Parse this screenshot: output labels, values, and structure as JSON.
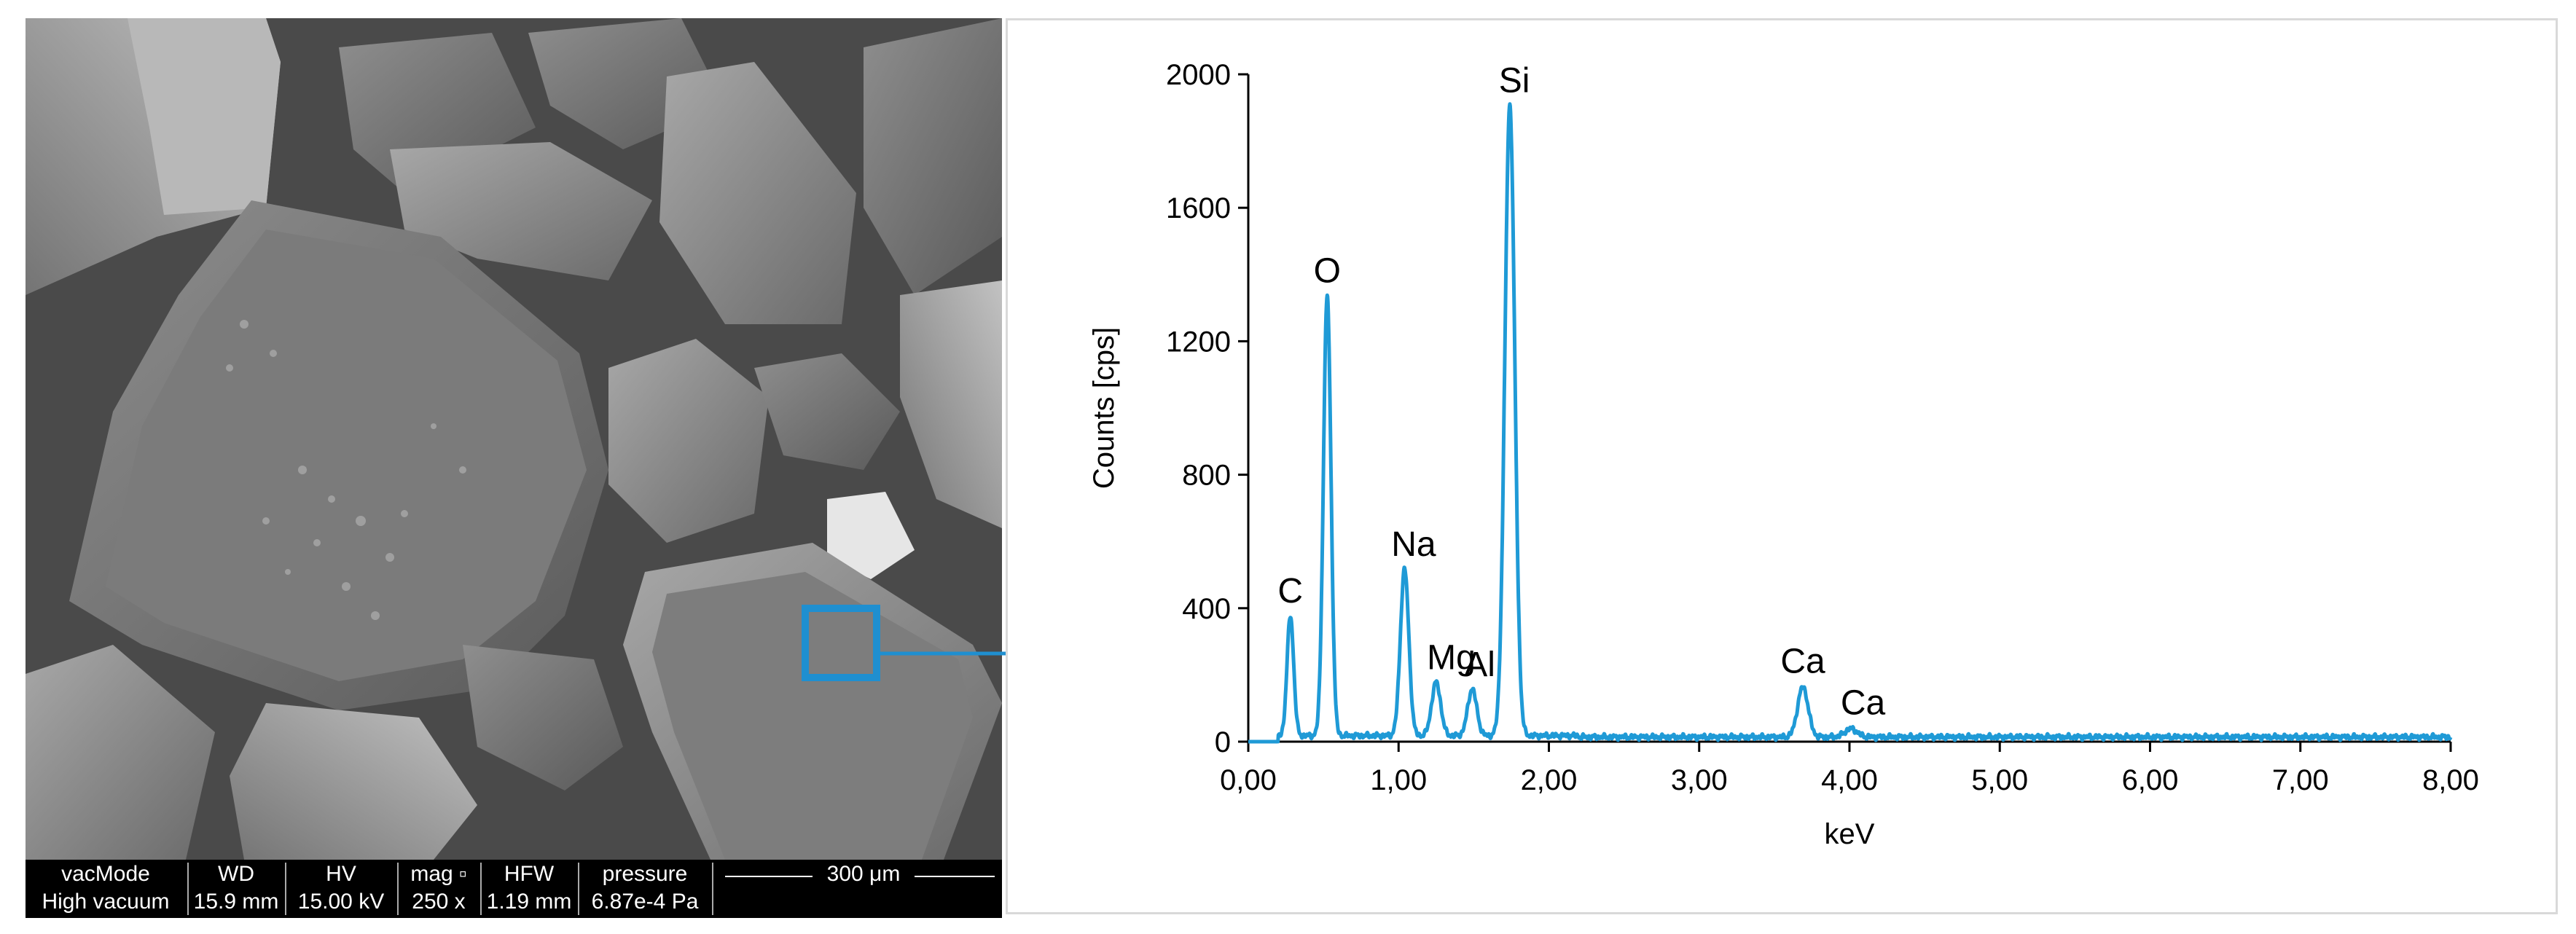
{
  "sem": {
    "info_labels": [
      "vacMode",
      "WD",
      "HV",
      "mag ▫",
      "HFW",
      "pressure"
    ],
    "info_values": [
      "High vacuum",
      "15.9 mm",
      "15.00 kV",
      "250 x",
      "1.19 mm",
      "6.87e-4 Pa"
    ],
    "scale_bar": "300 μm"
  },
  "colors": {
    "spectrum": "#1f9ad6",
    "annotation": "#1f8fd0",
    "axis": "#000000",
    "frame": "#d9d9d9"
  },
  "chart_data": {
    "type": "line",
    "xlabel": "keV",
    "ylabel": "Counts [cps]",
    "xlim": [
      0,
      8
    ],
    "ylim": [
      0,
      2000
    ],
    "x_ticks": [
      "0,00",
      "1,00",
      "2,00",
      "3,00",
      "4,00",
      "5,00",
      "6,00",
      "7,00",
      "8,00"
    ],
    "y_ticks": [
      "0",
      "400",
      "800",
      "1200",
      "1600",
      "2000"
    ],
    "x_tick_values": [
      0,
      1,
      2,
      3,
      4,
      5,
      6,
      7,
      8
    ],
    "y_tick_values": [
      0,
      400,
      800,
      1200,
      1600,
      2000
    ],
    "grid": false,
    "baseline": 10,
    "peaks": [
      {
        "element": "C",
        "x": 0.28,
        "y": 360,
        "width": 0.022
      },
      {
        "element": "O",
        "x": 0.525,
        "y": 1320,
        "width": 0.025
      },
      {
        "element": "Na",
        "x": 1.04,
        "y": 500,
        "width": 0.028
      },
      {
        "element": "Mg",
        "x": 1.25,
        "y": 160,
        "width": 0.03
      },
      {
        "element": "Al",
        "x": 1.49,
        "y": 140,
        "width": 0.03
      },
      {
        "element": "Si",
        "x": 1.74,
        "y": 1890,
        "width": 0.033
      },
      {
        "element": "Ca",
        "x": 3.69,
        "y": 150,
        "width": 0.035
      },
      {
        "element": "Ca",
        "x": 4.01,
        "y": 25,
        "width": 0.04
      }
    ],
    "peak_labels": [
      {
        "text": "C",
        "x": 0.28
      },
      {
        "text": "O",
        "x": 0.525
      },
      {
        "text": "Na",
        "x": 1.1
      },
      {
        "text": "Mg",
        "x": 1.35
      },
      {
        "text": "Al",
        "x": 1.54
      },
      {
        "text": "Si",
        "x": 1.77
      },
      {
        "text": "Ca",
        "x": 3.69
      },
      {
        "text": "Ca",
        "x": 4.09
      }
    ]
  }
}
